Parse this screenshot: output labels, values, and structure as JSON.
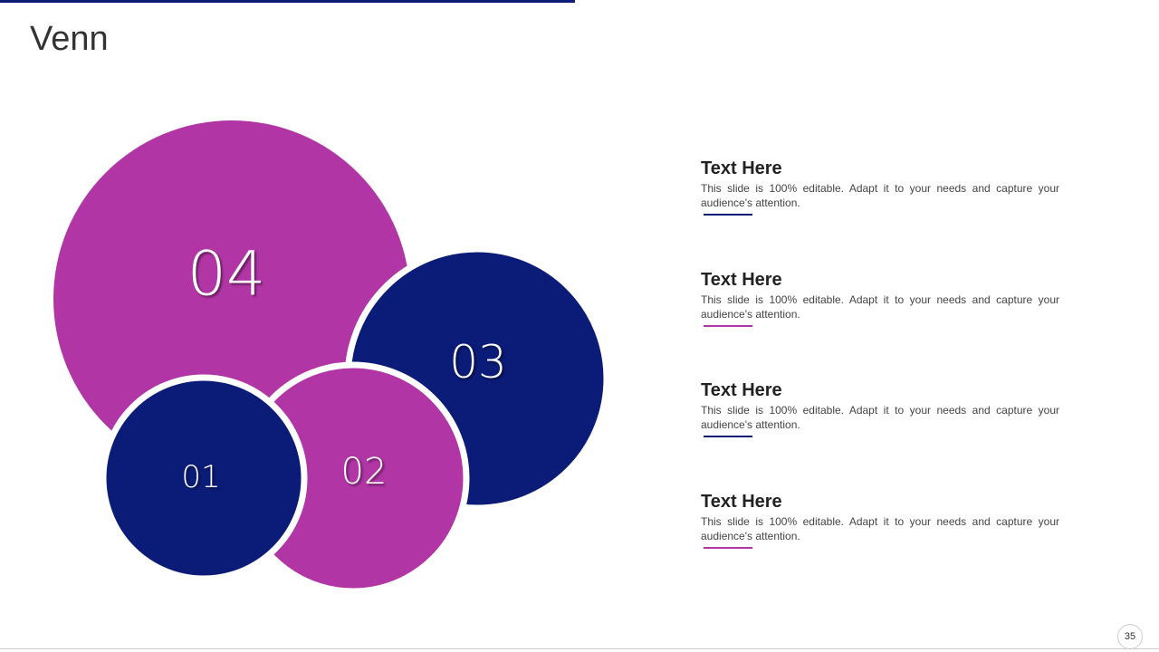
{
  "header": {
    "title": "Venn"
  },
  "venn": {
    "circles": [
      {
        "label": "04"
      },
      {
        "label": "03"
      },
      {
        "label": "02"
      },
      {
        "label": "01"
      }
    ]
  },
  "items": [
    {
      "heading": "Text Here",
      "body": "This slide is 100% editable. Adapt it to your needs and capture your audience's attention."
    },
    {
      "heading": "Text Here",
      "body": "This slide is 100% editable. Adapt it to your needs and capture your audience's attention."
    },
    {
      "heading": "Text Here",
      "body": "This slide is 100% editable. Adapt it to your needs and capture your audience's attention."
    },
    {
      "heading": "Text Here",
      "body": "This slide is 100% editable. Adapt it to your needs and capture your audience's attention."
    }
  ],
  "footer": {
    "page_number": "35"
  }
}
